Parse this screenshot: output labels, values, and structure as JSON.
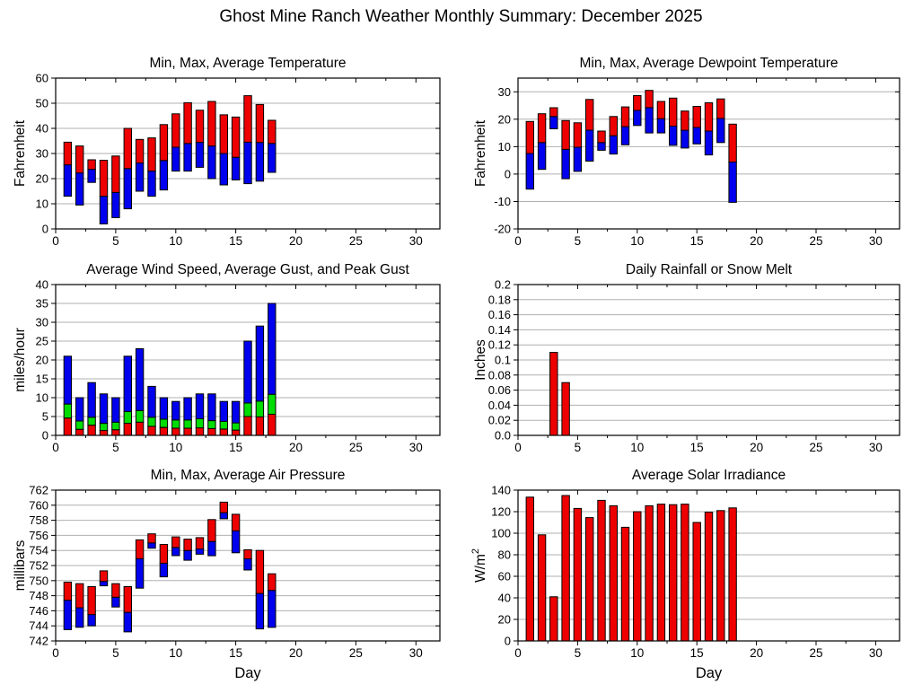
{
  "page_title": "Ghost Mine Ranch Weather Monthly Summary: December 2025",
  "palette": {
    "red": "#ee0000",
    "green": "#00dd00",
    "blue": "#0000ee",
    "grid": "#b0b0b0",
    "axis": "#000000"
  },
  "chart_data": [
    {
      "type": "stacked-bar",
      "title": "Min, Max, Average Temperature",
      "ylabel": "Fahrenheit",
      "xlabel": "",
      "xlim": [
        0,
        32
      ],
      "ylim": [
        0,
        60
      ],
      "xticks": {
        "values": [
          0,
          5,
          10,
          15,
          20,
          25,
          30
        ],
        "labels": [
          "0",
          "5",
          "10",
          "15",
          "20",
          "25",
          "30"
        ]
      },
      "xminor_step": 2.5,
      "yticks": {
        "values": [
          0,
          10,
          20,
          30,
          40,
          50,
          60
        ],
        "labels": [
          "0",
          "10",
          "20",
          "30",
          "40",
          "50",
          "60"
        ]
      },
      "days": [
        1,
        2,
        3,
        4,
        5,
        6,
        7,
        8,
        9,
        10,
        11,
        12,
        13,
        14,
        15,
        16,
        17,
        18
      ],
      "bars": [
        {
          "name": "min-to-average",
          "color": "#0000ee",
          "lower": "min",
          "upper": "avg"
        },
        {
          "name": "average-to-max",
          "color": "#ee0000",
          "lower": "avg",
          "upper": "max"
        }
      ],
      "values": {
        "min": [
          13.0,
          9.5,
          18.5,
          2.0,
          4.5,
          8.0,
          15.0,
          13.0,
          15.5,
          23.0,
          23.0,
          24.5,
          20.0,
          17.5,
          19.5,
          18.0,
          19.0,
          22.5
        ],
        "avg": [
          25.5,
          22.3,
          23.7,
          13.0,
          14.5,
          24.0,
          26.2,
          23.0,
          27.2,
          32.5,
          34.0,
          34.4,
          33.0,
          30.0,
          28.5,
          34.5,
          34.4,
          34.0
        ],
        "max": [
          34.5,
          33.0,
          27.5,
          27.3,
          29.0,
          40.0,
          35.6,
          36.2,
          41.5,
          45.8,
          50.2,
          47.2,
          50.7,
          45.4,
          44.5,
          53.0,
          49.5,
          43.2
        ]
      }
    },
    {
      "type": "stacked-bar",
      "title": "Min, Max, Average Dewpoint Temperature",
      "ylabel": "Fahrenheit",
      "xlabel": "",
      "xlim": [
        0,
        32
      ],
      "ylim": [
        -20,
        35
      ],
      "xticks": {
        "values": [
          0,
          5,
          10,
          15,
          20,
          25,
          30
        ],
        "labels": [
          "0",
          "5",
          "10",
          "15",
          "20",
          "25",
          "30"
        ]
      },
      "xminor_step": 2.5,
      "yticks": {
        "values": [
          -20,
          -10,
          0,
          10,
          20,
          30
        ],
        "labels": [
          "-20",
          "-10",
          "0",
          "10",
          "20",
          "30"
        ]
      },
      "days": [
        1,
        2,
        3,
        4,
        5,
        6,
        7,
        8,
        9,
        10,
        11,
        12,
        13,
        14,
        15,
        16,
        17,
        18
      ],
      "bars": [
        {
          "name": "min-to-average",
          "color": "#0000ee",
          "lower": "min",
          "upper": "avg"
        },
        {
          "name": "average-to-max",
          "color": "#ee0000",
          "lower": "avg",
          "upper": "max"
        }
      ],
      "values": {
        "min": [
          -5.5,
          1.7,
          16.5,
          -1.7,
          1.0,
          4.7,
          8.7,
          7.3,
          10.7,
          17.7,
          15.0,
          15.0,
          10.5,
          9.5,
          11.0,
          7.0,
          11.5,
          -10.3
        ],
        "avg": [
          7.5,
          11.5,
          21.0,
          9.0,
          9.8,
          16.0,
          11.5,
          14.0,
          17.3,
          23.2,
          24.2,
          20.2,
          17.5,
          16.0,
          17.0,
          15.7,
          20.3,
          4.4
        ],
        "max": [
          19.2,
          22.0,
          24.2,
          19.5,
          18.7,
          27.2,
          15.7,
          21.0,
          24.5,
          28.6,
          30.5,
          26.5,
          27.7,
          23.0,
          24.7,
          26.0,
          27.4,
          18.2
        ]
      }
    },
    {
      "type": "stacked-bar",
      "title": "Average Wind Speed, Average Gust, and Peak Gust",
      "ylabel": "miles/hour",
      "xlabel": "",
      "xlim": [
        0,
        32
      ],
      "ylim": [
        0,
        40
      ],
      "xticks": {
        "values": [
          0,
          5,
          10,
          15,
          20,
          25,
          30
        ],
        "labels": [
          "0",
          "5",
          "10",
          "15",
          "20",
          "25",
          "30"
        ]
      },
      "xminor_step": 2.5,
      "yticks": {
        "values": [
          0,
          5,
          10,
          15,
          20,
          25,
          30,
          35,
          40
        ],
        "labels": [
          "0",
          "5",
          "10",
          "15",
          "20",
          "25",
          "30",
          "35",
          "40"
        ]
      },
      "days": [
        1,
        2,
        3,
        4,
        5,
        6,
        7,
        8,
        9,
        10,
        11,
        12,
        13,
        14,
        15,
        16,
        17,
        18
      ],
      "bars": [
        {
          "name": "average-wind-speed",
          "color": "#ee0000",
          "lower": "base",
          "upper": "avg_speed"
        },
        {
          "name": "average-gust",
          "color": "#00dd00",
          "lower": "avg_speed",
          "upper": "avg_gust"
        },
        {
          "name": "peak-gust",
          "color": "#0000ee",
          "lower": "avg_gust",
          "upper": "peak_gust"
        }
      ],
      "values": {
        "avg_speed": [
          4.6,
          1.6,
          2.7,
          1.3,
          1.5,
          3.2,
          3.5,
          2.4,
          2.1,
          1.9,
          1.9,
          2.0,
          1.8,
          1.7,
          1.4,
          5.0,
          4.9,
          5.6
        ],
        "avg_gust": [
          8.3,
          3.8,
          4.8,
          3.2,
          3.5,
          6.3,
          6.6,
          4.8,
          4.3,
          4.1,
          4.1,
          4.4,
          3.9,
          3.7,
          3.3,
          8.6,
          9.1,
          10.9
        ],
        "peak_gust": [
          21,
          10,
          14,
          11,
          10,
          21,
          23,
          13,
          10,
          9,
          10,
          11,
          11,
          9,
          9,
          25,
          29,
          35
        ]
      }
    },
    {
      "type": "bar",
      "title": "Daily Rainfall or Snow Melt",
      "ylabel": "Inches",
      "xlabel": "",
      "xlim": [
        0,
        32
      ],
      "ylim": [
        0,
        0.2
      ],
      "xticks": {
        "values": [
          0,
          5,
          10,
          15,
          20,
          25,
          30
        ],
        "labels": [
          "0",
          "5",
          "10",
          "15",
          "20",
          "25",
          "30"
        ]
      },
      "xminor_step": 2.5,
      "yticks": {
        "values": [
          0,
          0.02,
          0.04,
          0.06,
          0.08,
          0.1,
          0.12,
          0.14,
          0.16,
          0.18,
          0.2
        ],
        "labels": [
          "0.0",
          "0.02",
          "0.04",
          "0.06",
          "0.08",
          "0.1",
          "0.12",
          "0.14",
          "0.16",
          "0.18",
          "0.2"
        ]
      },
      "days": [
        1,
        2,
        3,
        4,
        5,
        6,
        7,
        8,
        9,
        10,
        11,
        12,
        13,
        14,
        15,
        16,
        17,
        18
      ],
      "bars": [
        {
          "name": "rainfall",
          "color": "#ee0000",
          "lower": "base",
          "upper": "amount"
        }
      ],
      "values": {
        "amount": [
          0,
          0,
          0.11,
          0.07,
          0,
          0,
          0,
          0,
          0,
          0,
          0,
          0,
          0,
          0,
          0,
          0,
          0,
          0
        ]
      }
    },
    {
      "type": "stacked-bar",
      "title": "Min, Max, Average Air Pressure",
      "ylabel": "millibars",
      "xlabel": "Day",
      "xlim": [
        0,
        32
      ],
      "ylim": [
        742,
        762
      ],
      "xticks": {
        "values": [
          0,
          5,
          10,
          15,
          20,
          25,
          30
        ],
        "labels": [
          "0",
          "5",
          "10",
          "15",
          "20",
          "25",
          "30"
        ]
      },
      "xminor_step": 2.5,
      "yticks": {
        "values": [
          742,
          744,
          746,
          748,
          750,
          752,
          754,
          756,
          758,
          760,
          762
        ],
        "labels": [
          "742",
          "744",
          "746",
          "748",
          "750",
          "752",
          "754",
          "756",
          "758",
          "760",
          "762"
        ]
      },
      "days": [
        1,
        2,
        3,
        4,
        5,
        6,
        7,
        8,
        9,
        10,
        11,
        12,
        13,
        14,
        15,
        16,
        17,
        18
      ],
      "bars": [
        {
          "name": "min-to-average",
          "color": "#0000ee",
          "lower": "min",
          "upper": "avg"
        },
        {
          "name": "average-to-max",
          "color": "#ee0000",
          "lower": "avg",
          "upper": "max"
        }
      ],
      "values": {
        "min": [
          743.5,
          743.8,
          744.0,
          749.3,
          746.5,
          743.2,
          749.0,
          754.3,
          750.5,
          753.3,
          752.7,
          753.5,
          753.3,
          758.2,
          753.7,
          751.4,
          743.6,
          743.8
        ],
        "avg": [
          747.4,
          746.4,
          745.5,
          749.9,
          747.8,
          745.8,
          752.9,
          755.0,
          752.3,
          754.4,
          754.0,
          754.2,
          755.2,
          759.0,
          756.6,
          752.9,
          748.3,
          748.7
        ],
        "max": [
          749.8,
          749.6,
          749.2,
          751.3,
          749.6,
          749.2,
          755.4,
          756.2,
          754.8,
          755.8,
          755.5,
          755.7,
          758.1,
          760.4,
          758.8,
          754.1,
          754.0,
          750.9
        ]
      }
    },
    {
      "type": "bar",
      "title": "Average Solar Irradiance",
      "ylabel": "W/m^2",
      "xlabel": "Day",
      "xlim": [
        0,
        32
      ],
      "ylim": [
        0,
        140
      ],
      "xticks": {
        "values": [
          0,
          5,
          10,
          15,
          20,
          25,
          30
        ],
        "labels": [
          "0",
          "5",
          "10",
          "15",
          "20",
          "25",
          "30"
        ]
      },
      "xminor_step": 2.5,
      "yticks": {
        "values": [
          0,
          20,
          40,
          60,
          80,
          100,
          120,
          140
        ],
        "labels": [
          "0",
          "20",
          "40",
          "60",
          "80",
          "100",
          "120",
          "140"
        ]
      },
      "days": [
        1,
        2,
        3,
        4,
        5,
        6,
        7,
        8,
        9,
        10,
        11,
        12,
        13,
        14,
        15,
        16,
        17,
        18
      ],
      "bars": [
        {
          "name": "irradiance",
          "color": "#ee0000",
          "lower": "base",
          "upper": "irradiance"
        }
      ],
      "values": {
        "irradiance": [
          133.5,
          98.5,
          41.0,
          135.0,
          123.0,
          114.5,
          130.5,
          125.5,
          105.5,
          120.0,
          125.5,
          127.0,
          126.5,
          127.0,
          110.0,
          119.5,
          121.0,
          123.5
        ]
      }
    }
  ]
}
